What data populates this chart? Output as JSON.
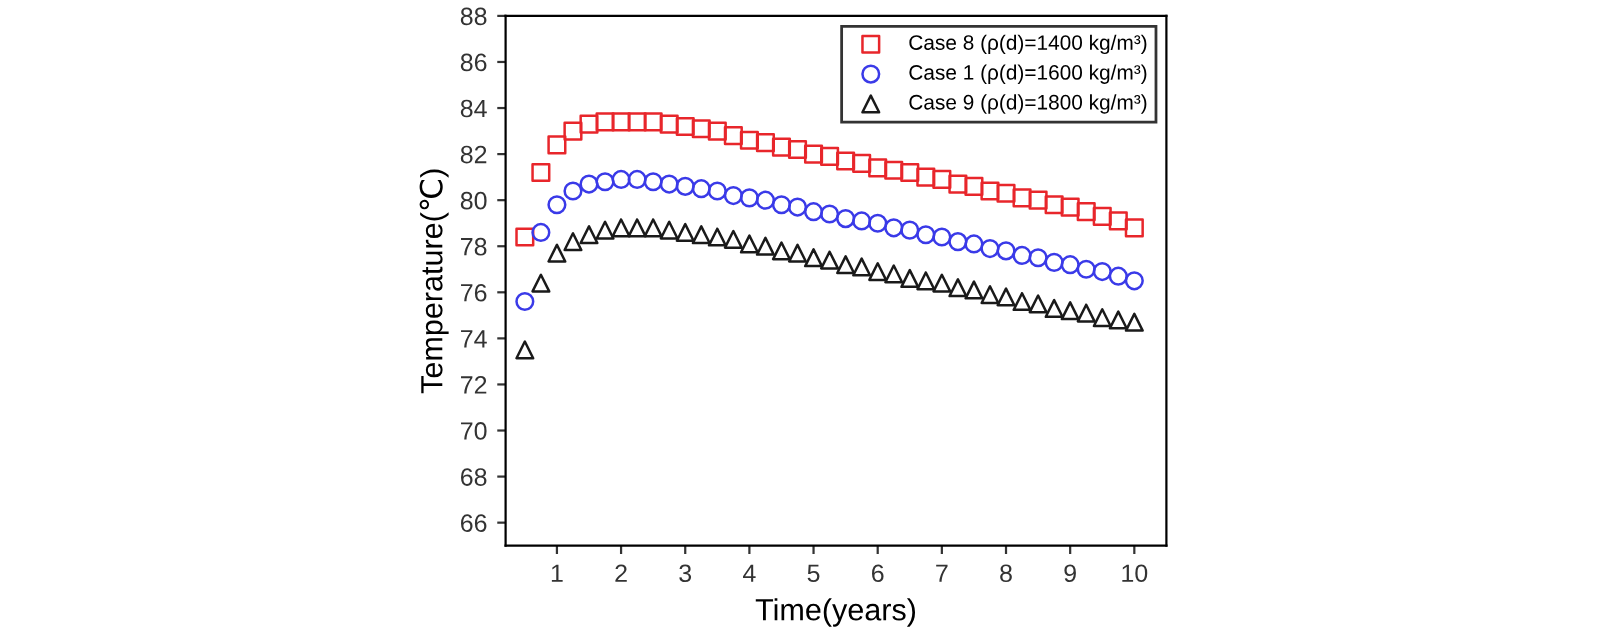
{
  "chart_data": {
    "type": "scatter",
    "xlabel": "Time(years)",
    "ylabel": "Temperature(℃)",
    "x": [
      0.5,
      0.75,
      1,
      1.25,
      1.5,
      1.75,
      2,
      2.25,
      2.5,
      2.75,
      3,
      3.25,
      3.5,
      3.75,
      4,
      4.25,
      4.5,
      4.75,
      5,
      5.25,
      5.5,
      5.75,
      6,
      6.25,
      6.5,
      6.75,
      7,
      7.25,
      7.5,
      7.75,
      8,
      8.25,
      8.5,
      8.75,
      9,
      9.25,
      9.5,
      9.75,
      10
    ],
    "series": [
      {
        "name": "Case 8 (ρ(d)=1400 kg/m³)",
        "color": "#e8262b",
        "marker": "square",
        "values": [
          78.4,
          81.2,
          82.4,
          83.0,
          83.3,
          83.4,
          83.4,
          83.4,
          83.4,
          83.3,
          83.2,
          83.1,
          83.0,
          82.8,
          82.6,
          82.5,
          82.3,
          82.2,
          82.0,
          81.9,
          81.7,
          81.6,
          81.4,
          81.3,
          81.2,
          81.0,
          80.9,
          80.7,
          80.6,
          80.4,
          80.3,
          80.1,
          80.0,
          79.8,
          79.7,
          79.5,
          79.3,
          79.1,
          78.8
        ]
      },
      {
        "name": "Case 1 (ρ(d)=1600 kg/m³)",
        "color": "#3a3ae8",
        "marker": "circle",
        "values": [
          75.6,
          78.6,
          79.8,
          80.4,
          80.7,
          80.8,
          80.9,
          80.9,
          80.8,
          80.7,
          80.6,
          80.5,
          80.4,
          80.2,
          80.1,
          80.0,
          79.8,
          79.7,
          79.5,
          79.4,
          79.2,
          79.1,
          79.0,
          78.8,
          78.7,
          78.5,
          78.4,
          78.2,
          78.1,
          77.9,
          77.8,
          77.6,
          77.5,
          77.3,
          77.2,
          77.0,
          76.9,
          76.7,
          76.5
        ]
      },
      {
        "name": "Case 9 (ρ(d)=1800 kg/m³)",
        "color": "#1a1a1a",
        "marker": "triangle",
        "values": [
          73.5,
          76.4,
          77.7,
          78.2,
          78.5,
          78.7,
          78.8,
          78.8,
          78.8,
          78.7,
          78.6,
          78.5,
          78.4,
          78.3,
          78.1,
          78.0,
          77.8,
          77.7,
          77.5,
          77.4,
          77.2,
          77.1,
          76.9,
          76.8,
          76.6,
          76.5,
          76.4,
          76.2,
          76.1,
          75.9,
          75.8,
          75.6,
          75.5,
          75.3,
          75.2,
          75.1,
          74.9,
          74.8,
          74.7
        ]
      }
    ],
    "xlim": [
      0.2,
      10.5
    ],
    "xticks": [
      1,
      2,
      3,
      4,
      5,
      6,
      7,
      8,
      9,
      10
    ],
    "ylim": [
      65,
      88
    ],
    "yticks": [
      66,
      68,
      70,
      72,
      74,
      76,
      78,
      80,
      82,
      84,
      86,
      88
    ],
    "grid": false,
    "legend": "top right"
  }
}
